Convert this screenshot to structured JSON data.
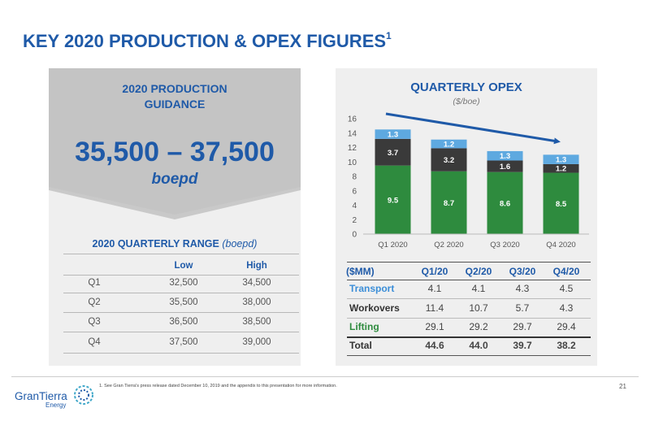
{
  "slide": {
    "title": "KEY 2020 PRODUCTION & OPEX FIGURES",
    "title_footnote": "1",
    "footnote": "1. See Gran Tierra's press release dated December 10, 2019 and the appendix to this presentation for more information.",
    "page_number": "21"
  },
  "logo": {
    "name": "GranTierra",
    "sub": "Energy"
  },
  "guidance": {
    "heading_line1": "2020 PRODUCTION",
    "heading_line2": "GUIDANCE",
    "value": "35,500 – 37,500",
    "unit": "boepd"
  },
  "quarterly_range": {
    "title": "2020 QUARTERLY RANGE",
    "unit": "(boepd)",
    "columns": [
      "Low",
      "High"
    ],
    "rows": [
      {
        "quarter": "Q1",
        "low": "32,500",
        "high": "34,500"
      },
      {
        "quarter": "Q2",
        "low": "35,500",
        "high": "38,000"
      },
      {
        "quarter": "Q3",
        "low": "36,500",
        "high": "38,500"
      },
      {
        "quarter": "Q4",
        "low": "37,500",
        "high": "39,000"
      }
    ]
  },
  "opex_table": {
    "headers": [
      "($MM)",
      "Q1/20",
      "Q2/20",
      "Q3/20",
      "Q4/20"
    ],
    "rows": [
      {
        "label": "Transport",
        "values": [
          "4.1",
          "4.1",
          "4.3",
          "4.5"
        ]
      },
      {
        "label": "Workovers",
        "values": [
          "11.4",
          "10.7",
          "5.7",
          "4.3"
        ]
      },
      {
        "label": "Lifting",
        "values": [
          "29.1",
          "29.2",
          "29.7",
          "29.4"
        ]
      },
      {
        "label": "Total",
        "values": [
          "44.6",
          "44.0",
          "39.7",
          "38.2"
        ]
      }
    ]
  },
  "colors": {
    "title_blue": "#1f5aa8",
    "lifting_green": "#2e8b3e",
    "workovers_dark": "#3a3a3a",
    "transport_blue": "#5ea9e0",
    "trend_arrow": "#1f5aa8"
  },
  "chart_data": {
    "type": "bar",
    "stacked": true,
    "title": "QUARTERLY OPEX",
    "subtitle": "($/boe)",
    "categories": [
      "Q1 2020",
      "Q2 2020",
      "Q3 2020",
      "Q4 2020"
    ],
    "series": [
      {
        "name": "Lifting",
        "values": [
          9.5,
          8.7,
          8.6,
          8.5
        ]
      },
      {
        "name": "Workovers",
        "values": [
          3.7,
          3.2,
          1.6,
          1.2
        ]
      },
      {
        "name": "Transport",
        "values": [
          1.3,
          1.2,
          1.3,
          1.3
        ]
      }
    ],
    "ylim": [
      0,
      16
    ],
    "yticks": [
      0,
      2,
      4,
      6,
      8,
      10,
      12,
      14,
      16
    ],
    "grid": false,
    "trend_arrow": "decreasing"
  }
}
